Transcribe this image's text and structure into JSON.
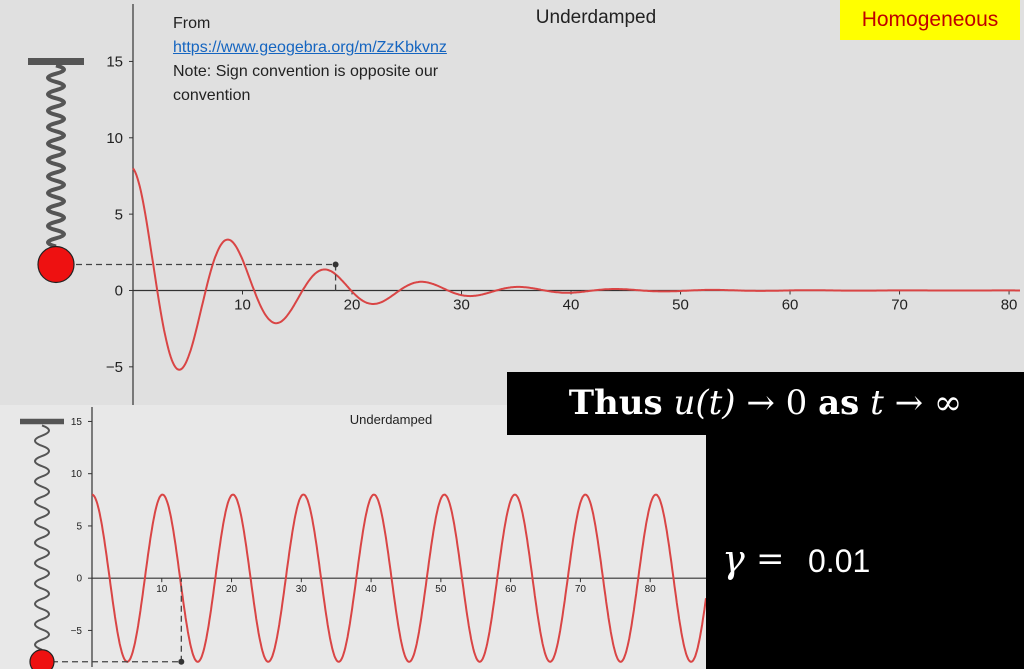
{
  "tag_label": "Homogeneous",
  "source_note": {
    "line1": "From",
    "link": "https://www.geogebra.org/m/ZzKbkvnz",
    "line3": "Note: Sign convention is opposite our convention"
  },
  "conclusion": {
    "word_thus": "Thus",
    "u_of_t": "u(t)",
    "arrow1": "→",
    "zero": "0",
    "word_as": "as",
    "t": "t",
    "arrow2": "→",
    "infinity": "∞"
  },
  "gamma": {
    "symbol": "γ",
    "equals": "=",
    "value": "0.01"
  },
  "colors": {
    "curve": "#d94545",
    "mass": "#ee1111",
    "tag_bg": "#ffff00",
    "tag_text": "#c00000"
  },
  "chart_data": [
    {
      "type": "line",
      "title": "Underdamped",
      "x_ticks": [
        10,
        20,
        30,
        40,
        50,
        60,
        70,
        80
      ],
      "y_ticks": [
        15,
        10,
        5,
        0,
        -5
      ],
      "xlim": [
        0,
        81
      ],
      "ylim": [
        -7.5,
        18.5
      ],
      "grid": false,
      "series": [
        {
          "x_range": [
            0,
            81
          ],
          "y0": 8,
          "omega": 0.71,
          "decay": 0.1
        }
      ],
      "marker": {
        "x": 18.5,
        "y": 1.7
      }
    },
    {
      "type": "line",
      "title": "Underdamped",
      "x_ticks": [
        10,
        20,
        30,
        40,
        50,
        60,
        70,
        80
      ],
      "y_ticks": [
        15,
        10,
        5,
        0,
        -5
      ],
      "xlim": [
        0,
        88
      ],
      "ylim": [
        -8.5,
        16
      ],
      "grid": false,
      "series": [
        {
          "x_range": [
            0,
            88
          ],
          "y0": 8,
          "omega": 0.622,
          "decay": 0
        }
      ],
      "marker": {
        "x": 12.8,
        "y": -8
      }
    }
  ]
}
